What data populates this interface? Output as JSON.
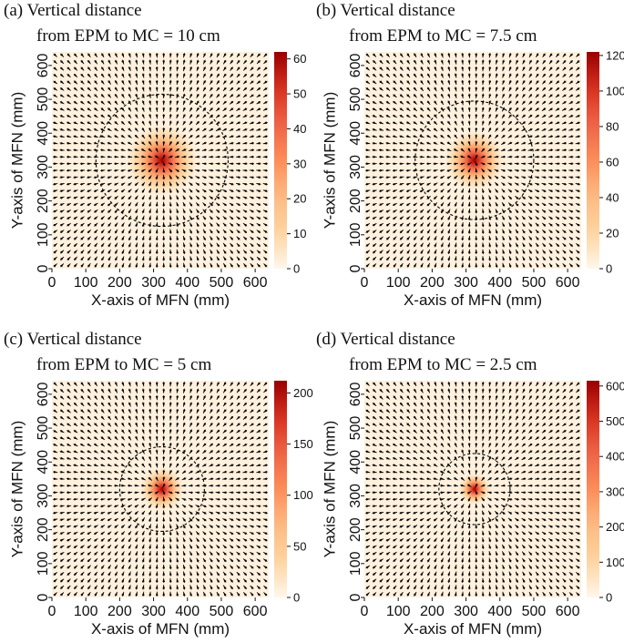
{
  "chart_data": [
    {
      "type": "heatmap",
      "panel_id": "(a)",
      "title_line1": "(a) Vertical distance",
      "title_line2": "from EPM to MC = 10 cm",
      "xlabel": "X-axis of MFN (mm)",
      "ylabel": "Y-axis of MFN (mm)",
      "xticks": [
        0,
        100,
        200,
        300,
        400,
        500,
        600
      ],
      "yticks": [
        0,
        100,
        200,
        300,
        400,
        500,
        600
      ],
      "xlim": [
        0,
        640
      ],
      "ylim": [
        0,
        640
      ],
      "center": [
        325,
        320
      ],
      "peak_value": 62,
      "hot_radius": 90,
      "circle_radius": 195,
      "colorbar_ticks": [
        0,
        10,
        20,
        30,
        40,
        50,
        60
      ],
      "colorbar_range": [
        0,
        62
      ],
      "overlay": "vector field arrows pointing toward the center; dashed circle"
    },
    {
      "type": "heatmap",
      "panel_id": "(b)",
      "title_line1": "(b) Vertical distance",
      "title_line2": "from EPM to MC = 7.5 cm",
      "xlabel": "X-axis of MFN (mm)",
      "ylabel": "Y-axis of MFN (mm)",
      "xticks": [
        0,
        100,
        200,
        300,
        400,
        500,
        600
      ],
      "yticks": [
        0,
        100,
        200,
        300,
        400,
        500,
        600
      ],
      "xlim": [
        0,
        640
      ],
      "ylim": [
        0,
        640
      ],
      "center": [
        325,
        320
      ],
      "peak_value": 122,
      "hot_radius": 75,
      "circle_radius": 175,
      "colorbar_ticks": [
        0,
        20,
        40,
        60,
        80,
        100,
        120
      ],
      "colorbar_range": [
        0,
        122
      ],
      "overlay": "vector field arrows pointing toward the center; dashed circle"
    },
    {
      "type": "heatmap",
      "panel_id": "(c)",
      "title_line1": "(c) Vertical distance",
      "title_line2": "from EPM to MC = 5 cm",
      "xlabel": "X-axis of MFN (mm)",
      "ylabel": "Y-axis of MFN (mm)",
      "xticks": [
        0,
        100,
        200,
        300,
        400,
        500,
        600
      ],
      "yticks": [
        0,
        100,
        200,
        300,
        400,
        500,
        600
      ],
      "xlim": [
        0,
        640
      ],
      "ylim": [
        0,
        640
      ],
      "center": [
        325,
        320
      ],
      "peak_value": 212,
      "hot_radius": 55,
      "circle_radius": 125,
      "colorbar_ticks": [
        0,
        50,
        100,
        150,
        200
      ],
      "colorbar_range": [
        0,
        212
      ],
      "overlay": "vector field arrows pointing toward the center; dashed circle"
    },
    {
      "type": "heatmap",
      "panel_id": "(d)",
      "title_line1": "(d) Vertical distance",
      "title_line2": "from EPM to MC = 2.5 cm",
      "xlabel": "X-axis of MFN (mm)",
      "ylabel": "Y-axis of MFN (mm)",
      "xticks": [
        0,
        100,
        200,
        300,
        400,
        500,
        600
      ],
      "yticks": [
        0,
        100,
        200,
        300,
        400,
        500,
        600
      ],
      "xlim": [
        0,
        640
      ],
      "ylim": [
        0,
        640
      ],
      "center": [
        325,
        320
      ],
      "peak_value": 615,
      "hot_radius": 40,
      "circle_radius": 105,
      "colorbar_ticks": [
        0,
        100,
        200,
        300,
        400,
        500,
        600
      ],
      "colorbar_range": [
        0,
        615
      ],
      "overlay": "vector field arrows pointing toward the center; dashed circle"
    }
  ],
  "colors": {
    "colormap_stops": [
      "#fff7ec",
      "#fdd49e",
      "#fdbb84",
      "#fc8d59",
      "#ef6548",
      "#d7301f",
      "#990000"
    ],
    "arrow": "#000000",
    "circle": "#000000"
  }
}
